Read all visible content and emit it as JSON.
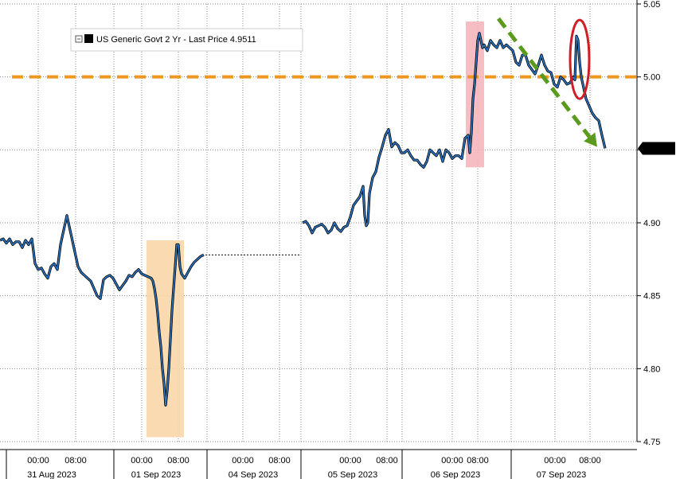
{
  "chart_data": {
    "type": "line",
    "legend": {
      "text": "US Generic Govt 2 Yr - Last Price 4.9511",
      "placement": "top-left"
    },
    "last_price_label": "4.9511",
    "ylim": [
      4.75,
      5.05
    ],
    "y_ticks": [
      "5.05",
      "5.00",
      "4.95",
      "4.90",
      "4.85",
      "4.80",
      "4.75"
    ],
    "y_tick_values": [
      5.05,
      5.0,
      4.95,
      4.9,
      4.85,
      4.8,
      4.75
    ],
    "x_time_labels": [
      "00:00",
      "08:00",
      "00:00",
      "08:00",
      "00:00",
      "08:00",
      "00:00",
      "08:00",
      "00:00",
      "08:00",
      "00:00",
      "08:00"
    ],
    "x_date_labels": [
      "31 Aug 2023",
      "01 Sep 2023",
      "04 Sep 2023",
      "05 Sep 2023",
      "06 Sep 2023",
      "07 Sep 2023"
    ],
    "grid": true,
    "reference_line": {
      "value": 5.0,
      "color": "#f0961e",
      "style": "dashed"
    },
    "series": [
      {
        "color": "#2a78c8",
        "segments": [
          {
            "t": [
              0,
              4,
              8,
              12,
              16,
              20,
              24,
              28,
              32,
              36,
              40,
              44,
              48,
              52,
              56,
              60,
              64,
              68,
              72,
              76,
              80,
              84,
              88,
              90,
              92,
              94,
              98,
              102,
              106,
              110,
              114,
              118,
              122,
              126,
              130,
              134,
              138,
              142,
              146,
              150,
              154,
              158,
              162,
              166,
              170,
              174,
              178,
              182,
              186,
              190,
              192,
              194,
              196,
              198,
              200,
              202,
              204,
              206,
              208,
              210,
              212,
              214,
              216,
              218,
              220,
              222,
              224,
              226,
              228,
              232,
              236,
              240,
              244,
              248,
              252,
              256
            ],
            "v": [
              4.888,
              4.889,
              4.886,
              4.889,
              4.885,
              4.887,
              4.887,
              4.883,
              4.888,
              4.885,
              4.889,
              4.872,
              4.868,
              4.869,
              4.865,
              4.862,
              4.87,
              4.872,
              4.868,
              4.885,
              4.895,
              4.905,
              4.895,
              4.89,
              4.885,
              4.88,
              4.87,
              4.866,
              4.864,
              4.862,
              4.86,
              4.855,
              4.85,
              4.848,
              4.861,
              4.863,
              4.864,
              4.862,
              4.858,
              4.854,
              4.857,
              4.86,
              4.864,
              4.863,
              4.866,
              4.868,
              4.865,
              4.864,
              4.863,
              4.862,
              4.86,
              4.855,
              4.848,
              4.838,
              4.825,
              4.815,
              4.8,
              4.79,
              4.775,
              4.785,
              4.8,
              4.82,
              4.84,
              4.855,
              4.87,
              4.885,
              4.885,
              4.87,
              4.865,
              4.862,
              4.866,
              4.87,
              4.873,
              4.875,
              4.877,
              4.878
            ]
          },
          {
            "t": [
              380,
              384,
              388,
              392,
              396,
              400,
              404,
              408,
              412,
              416,
              420,
              424,
              428,
              432,
              436,
              440,
              444,
              448,
              452,
              456,
              458,
              460,
              462,
              464,
              468,
              472,
              476,
              480,
              484,
              488,
              492,
              496,
              500,
              504,
              508,
              512,
              516,
              520,
              524,
              528,
              532,
              536,
              540,
              544,
              548,
              552,
              556,
              560,
              564,
              568,
              572,
              576,
              580,
              584,
              588,
              590,
              592,
              594,
              596,
              598,
              600,
              602,
              604,
              606,
              608,
              612,
              616,
              620,
              624,
              628,
              632,
              636,
              640,
              644,
              648,
              652,
              656,
              660,
              664,
              668,
              672,
              676,
              680,
              684,
              688,
              692,
              696,
              700,
              704,
              708,
              712,
              716,
              720,
              722,
              724,
              726,
              728,
              730,
              732,
              734,
              736,
              740,
              744,
              748,
              752,
              756,
              760
            ],
            "v": [
              4.9,
              4.901,
              4.898,
              4.893,
              4.897,
              4.898,
              4.899,
              4.897,
              4.893,
              4.895,
              4.9,
              4.896,
              4.894,
              4.897,
              4.898,
              4.904,
              4.912,
              4.915,
              4.918,
              4.925,
              4.905,
              4.898,
              4.9,
              4.92,
              4.931,
              4.935,
              4.945,
              4.952,
              4.96,
              4.964,
              4.952,
              4.955,
              4.953,
              4.948,
              4.948,
              4.95,
              4.946,
              4.943,
              4.943,
              4.94,
              4.938,
              4.942,
              4.95,
              4.948,
              4.946,
              4.95,
              4.942,
              4.95,
              4.948,
              4.944,
              4.946,
              4.946,
              4.944,
              4.958,
              4.96,
              4.948,
              4.962,
              4.985,
              4.995,
              5.01,
              5.025,
              5.03,
              5.025,
              5.02,
              5.022,
              5.018,
              5.025,
              5.022,
              5.02,
              5.025,
              5.02,
              5.022,
              5.02,
              5.018,
              5.01,
              5.008,
              5.015,
              5.015,
              5.008,
              5.005,
              5.002,
              5.008,
              5.015,
              5.008,
              5.004,
              5.003,
              4.995,
              4.993,
              5.0,
              4.998,
              4.995,
              4.996,
              5.0,
              4.998,
              5.028,
              5.025,
              5.01,
              5.0,
              4.995,
              4.99,
              4.985,
              4.98,
              4.975,
              4.972,
              4.97,
              4.96,
              4.951
            ]
          }
        ]
      }
    ],
    "gap_connector": {
      "t": [
        258,
        378
      ],
      "v": [
        4.878,
        4.878
      ],
      "style": "dotted"
    },
    "annotations": [
      {
        "kind": "shaded-box",
        "color": "#f9d6a9",
        "t": [
          184,
          231
        ],
        "v": [
          4.753,
          4.888
        ]
      },
      {
        "kind": "shaded-box",
        "color": "#f5b7bd",
        "t": [
          585,
          608
        ],
        "v": [
          4.938,
          5.038
        ]
      },
      {
        "kind": "ellipse",
        "color": "#d01d27",
        "t": [
          716,
          740
        ],
        "v": [
          4.985,
          5.039
        ]
      },
      {
        "kind": "dashed-arrow",
        "color": "#5a9a1c",
        "t": [
          626,
          750
        ],
        "v": [
          5.04,
          4.952
        ]
      }
    ]
  }
}
